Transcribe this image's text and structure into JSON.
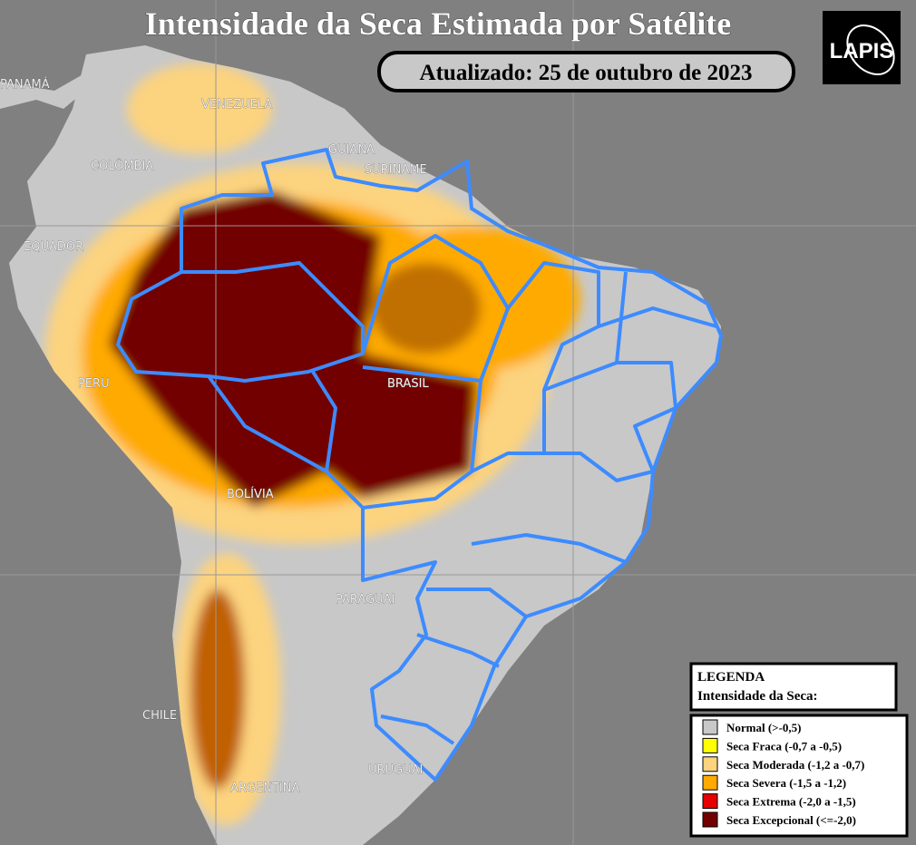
{
  "title": "Intensidade da Seca Estimada por Satélite",
  "subtitle": "Atualizado: 25 de outubro de 2023",
  "logo": "LAPIS",
  "map_labels": [
    "PANAMÁ",
    "VENEZUELA",
    "COLÔMBIA",
    "GUIANA",
    "SURINAME",
    "EQUADOR",
    "PERU",
    "BRASIL",
    "BOLÍVIA",
    "PARAGUAI",
    "CHILE",
    "URUGUAI",
    "ARGENTINA"
  ],
  "legend": {
    "title": "LEGENDA",
    "subtitle": "Intensidade da Seca:",
    "items": [
      {
        "label": "Normal (>-0,5)",
        "color": "#c8c8c8"
      },
      {
        "label": "Seca Fraca (-0,7 a -0,5)",
        "color": "#ffff00"
      },
      {
        "label": "Seca Moderada (-1,2 a -0,7)",
        "color": "#fcd37f"
      },
      {
        "label": "Seca Severa (-1,5 a -1,2)",
        "color": "#ffaa00"
      },
      {
        "label": "Seca Extrema (-2,0 a -1,5)",
        "color": "#e60000"
      },
      {
        "label": "Seca Excepcional (<=-2,0)",
        "color": "#730000"
      }
    ]
  }
}
